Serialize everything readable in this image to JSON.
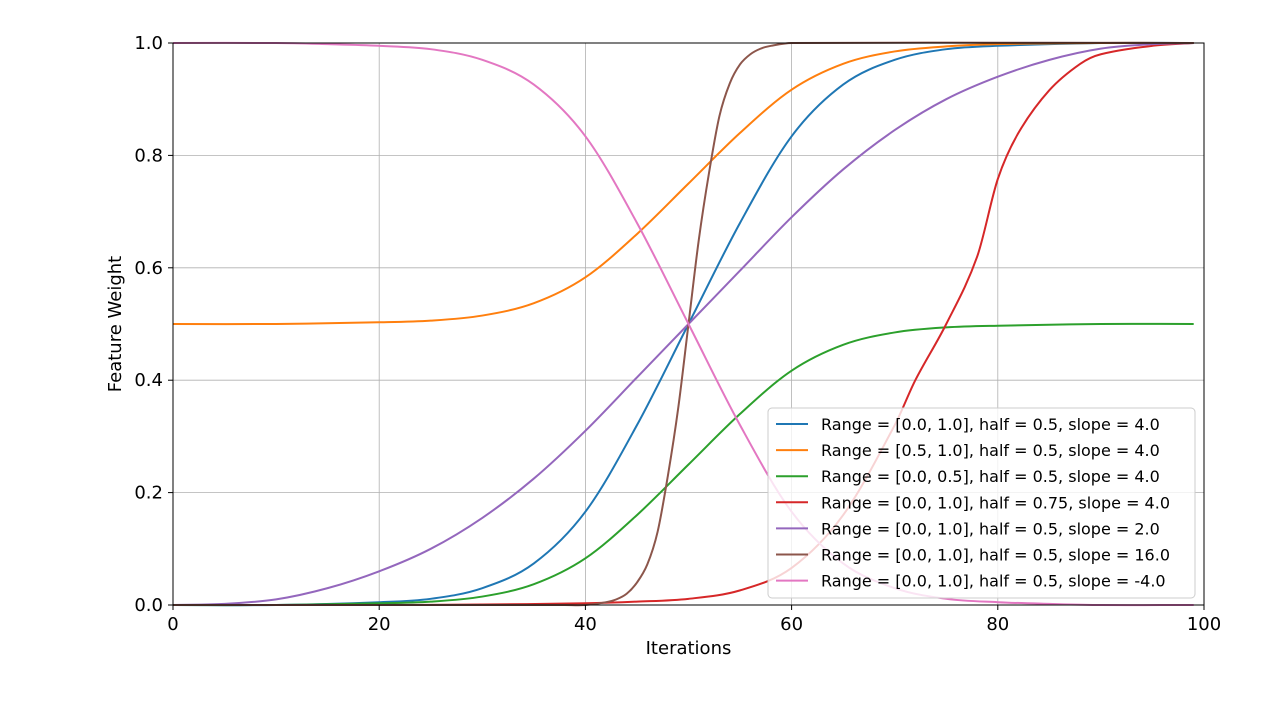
{
  "chart_data": {
    "type": "line",
    "xlabel": "Iterations",
    "ylabel": "Feature Weight",
    "xlim": [
      0,
      100
    ],
    "ylim": [
      0.0,
      1.0
    ],
    "xticks": [
      0,
      20,
      40,
      60,
      80,
      100
    ],
    "xtick_labels": [
      "0",
      "20",
      "40",
      "60",
      "80",
      "100"
    ],
    "yticks": [
      0.0,
      0.2,
      0.4,
      0.6,
      0.8,
      1.0
    ],
    "ytick_labels": [
      "0.0",
      "0.2",
      "0.4",
      "0.6",
      "0.8",
      "1.0"
    ],
    "grid": true,
    "legend_position": "lower-right",
    "series": [
      {
        "name": "Range = [0.0, 1.0], half = 0.5, slope = 4.0",
        "color": "#1f77b4",
        "x": [
          0,
          10,
          20,
          25,
          30,
          35,
          40,
          45,
          50,
          55,
          60,
          65,
          70,
          75,
          80,
          90,
          99
        ],
        "y": [
          0.0,
          0.0,
          0.005,
          0.011,
          0.03,
          0.074,
          0.166,
          0.32,
          0.5,
          0.68,
          0.834,
          0.926,
          0.97,
          0.989,
          0.995,
          1.0,
          1.0
        ]
      },
      {
        "name": "Range = [0.5, 1.0], half = 0.5, slope = 4.0",
        "color": "#ff7f0e",
        "x": [
          0,
          10,
          20,
          25,
          30,
          35,
          40,
          45,
          50,
          55,
          60,
          65,
          70,
          75,
          80,
          90,
          99
        ],
        "y": [
          0.5,
          0.5,
          0.503,
          0.506,
          0.515,
          0.537,
          0.583,
          0.66,
          0.75,
          0.84,
          0.917,
          0.963,
          0.985,
          0.994,
          0.998,
          1.0,
          1.0
        ]
      },
      {
        "name": "Range = [0.0, 0.5], half = 0.5, slope = 4.0",
        "color": "#2ca02c",
        "x": [
          0,
          10,
          20,
          25,
          30,
          35,
          40,
          45,
          50,
          55,
          60,
          65,
          70,
          75,
          80,
          90,
          99
        ],
        "y": [
          0.0,
          0.0,
          0.003,
          0.006,
          0.015,
          0.037,
          0.083,
          0.16,
          0.25,
          0.34,
          0.417,
          0.463,
          0.485,
          0.494,
          0.497,
          0.5,
          0.5
        ]
      },
      {
        "name": "Range = [0.0, 1.0], half = 0.75, slope = 4.0",
        "color": "#d62728",
        "x": [
          0,
          20,
          30,
          40,
          45,
          50,
          55,
          60,
          65,
          70,
          72,
          75,
          78,
          80,
          82,
          85,
          88,
          90,
          95,
          99
        ],
        "y": [
          0.0,
          0.0,
          0.001,
          0.003,
          0.006,
          0.011,
          0.026,
          0.066,
          0.16,
          0.32,
          0.4,
          0.5,
          0.62,
          0.758,
          0.84,
          0.916,
          0.963,
          0.98,
          0.995,
          1.0
        ]
      },
      {
        "name": "Range = [0.0, 1.0], half = 0.5, slope = 2.0",
        "color": "#9467bd",
        "x": [
          0,
          5,
          10,
          15,
          20,
          25,
          30,
          35,
          40,
          45,
          50,
          55,
          60,
          65,
          70,
          75,
          80,
          85,
          90,
          95,
          99
        ],
        "y": [
          0.0,
          0.002,
          0.01,
          0.03,
          0.06,
          0.1,
          0.155,
          0.225,
          0.31,
          0.405,
          0.5,
          0.595,
          0.69,
          0.775,
          0.845,
          0.9,
          0.94,
          0.97,
          0.99,
          0.998,
          1.0
        ]
      },
      {
        "name": "Range = [0.0, 1.0], half = 0.5, slope = 16.0",
        "color": "#8c564b",
        "x": [
          0,
          38,
          40,
          42,
          43,
          44,
          45,
          46,
          47,
          48,
          49,
          50,
          51,
          52,
          53,
          54,
          55,
          56,
          57,
          58,
          60,
          99
        ],
        "y": [
          0.0,
          0.0,
          0.0,
          0.005,
          0.01,
          0.02,
          0.04,
          0.072,
          0.13,
          0.23,
          0.35,
          0.5,
          0.65,
          0.77,
          0.87,
          0.928,
          0.962,
          0.98,
          0.99,
          0.995,
          1.0,
          1.0
        ]
      },
      {
        "name": "Range = [0.0, 1.0], half = 0.5, slope = -4.0",
        "color": "#e377c2",
        "x": [
          0,
          10,
          15,
          20,
          25,
          30,
          35,
          40,
          45,
          50,
          55,
          60,
          65,
          70,
          75,
          80,
          85,
          90,
          99
        ],
        "y": [
          1.0,
          1.0,
          0.998,
          0.995,
          0.989,
          0.97,
          0.926,
          0.834,
          0.68,
          0.5,
          0.32,
          0.166,
          0.074,
          0.03,
          0.011,
          0.005,
          0.002,
          0.0,
          0.0
        ]
      }
    ]
  }
}
